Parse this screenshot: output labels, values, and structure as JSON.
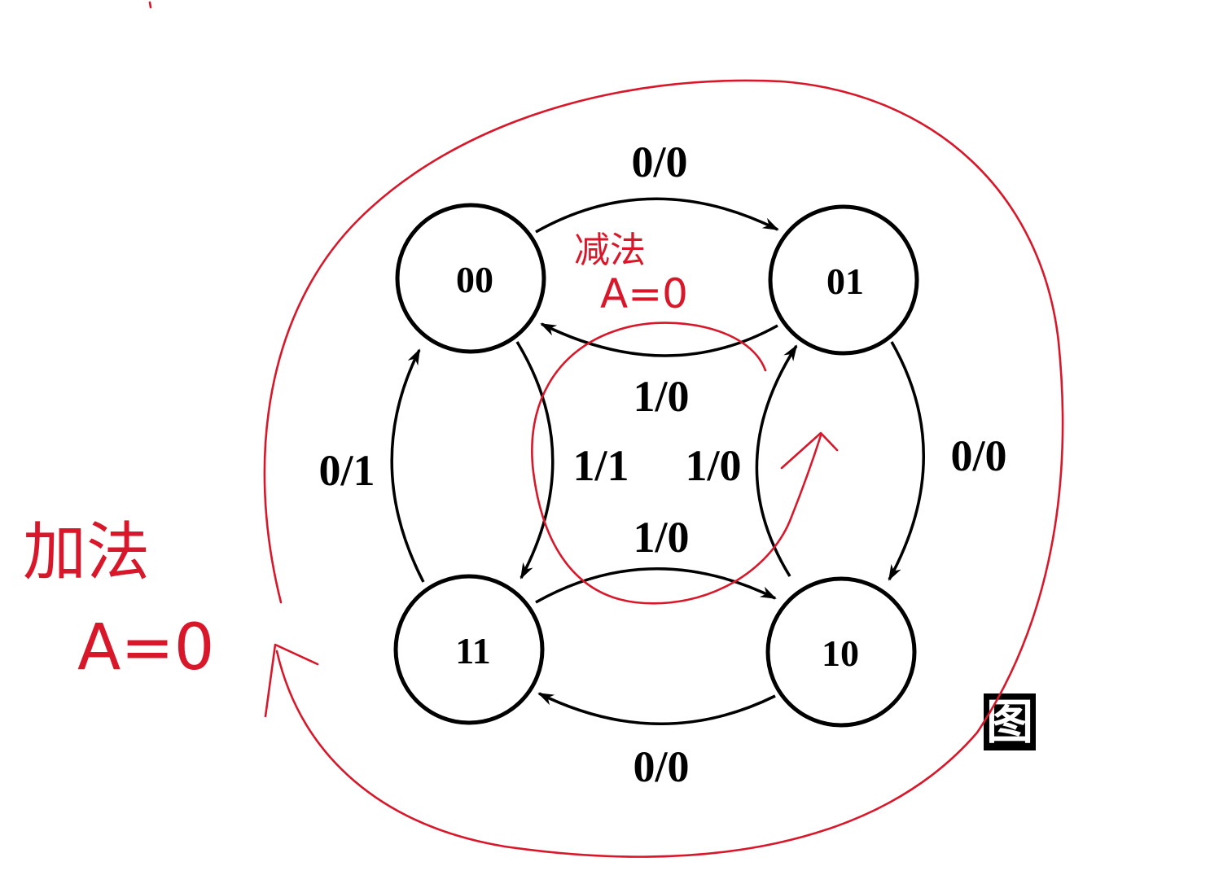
{
  "diagram": {
    "states": {
      "s00": "00",
      "s01": "01",
      "s11": "11",
      "s10": "10"
    },
    "transitions": {
      "t00_01_outer": "0/0",
      "t01_00_inner": "1/0",
      "t00_11_inner": "1/1",
      "t11_00_outer": "0/1",
      "t10_01_inner": "1/0",
      "t01_10_outer": "0/0",
      "t11_10_inner": "1/0",
      "t10_11_outer": "0/0"
    },
    "figure_label": "图"
  },
  "annotations": {
    "subtract_label": "减法",
    "subtract_cond": "A=0",
    "add_label": "加法",
    "add_cond": "A=0",
    "ink_color": "#d8182a"
  }
}
